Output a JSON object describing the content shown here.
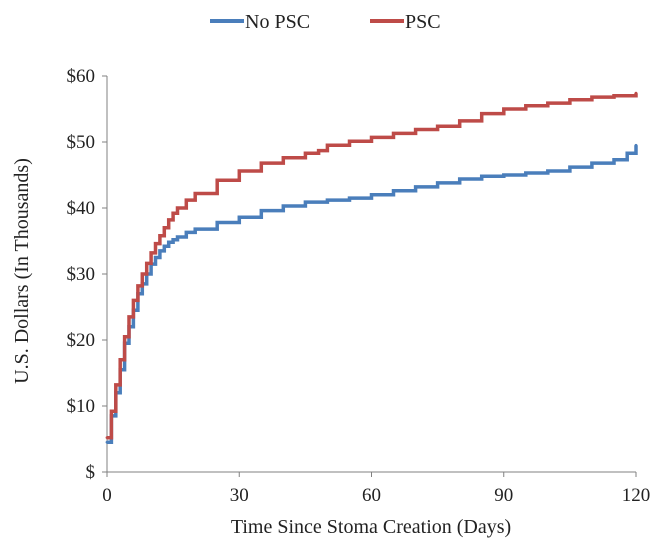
{
  "chart_data": {
    "type": "line",
    "step": true,
    "xlabel": "Time Since Stoma Creation (Days)",
    "ylabel": "U.S. Dollars (In Thousands)",
    "xlim": [
      0,
      120
    ],
    "ylim": [
      0,
      60
    ],
    "xticks": [
      0,
      30,
      60,
      90,
      120
    ],
    "xtick_labels": [
      "0",
      "30",
      "60",
      "90",
      "120"
    ],
    "yticks": [
      0,
      10,
      20,
      30,
      40,
      50,
      60
    ],
    "ytick_labels": [
      "$",
      "$10",
      "$20",
      "$30",
      "$40",
      "$50",
      "$60"
    ],
    "grid": false,
    "legend_position": "top-center",
    "series": [
      {
        "name": "No PSC",
        "color": "#4a7ebb",
        "x": [
          0,
          1,
          2,
          3,
          4,
          5,
          6,
          7,
          8,
          9,
          10,
          11,
          12,
          13,
          14,
          15,
          16,
          18,
          20,
          25,
          30,
          35,
          40,
          45,
          50,
          55,
          60,
          65,
          70,
          75,
          80,
          85,
          90,
          95,
          100,
          105,
          110,
          115,
          118,
          120
        ],
        "values": [
          4.5,
          8.5,
          12,
          15.5,
          19.5,
          22,
          24.5,
          27,
          28.5,
          30,
          31.5,
          32.5,
          33.5,
          34.2,
          34.8,
          35.2,
          35.6,
          36.3,
          36.8,
          37.8,
          38.6,
          39.6,
          40.3,
          40.9,
          41.2,
          41.5,
          42,
          42.6,
          43.2,
          43.8,
          44.4,
          44.8,
          45,
          45.3,
          45.6,
          46.2,
          46.8,
          47.3,
          48.3,
          49.5
        ]
      },
      {
        "name": "PSC",
        "color": "#be4b48",
        "x": [
          0,
          1,
          2,
          3,
          4,
          5,
          6,
          7,
          8,
          9,
          10,
          11,
          12,
          13,
          14,
          15,
          16,
          18,
          20,
          25,
          30,
          35,
          40,
          45,
          48,
          50,
          55,
          60,
          65,
          70,
          75,
          80,
          85,
          90,
          95,
          100,
          105,
          110,
          115,
          120
        ],
        "values": [
          5.2,
          9.2,
          13.2,
          17,
          20.5,
          23.5,
          26,
          28.2,
          30,
          31.6,
          33.2,
          34.6,
          35.8,
          37,
          38.2,
          39.2,
          40,
          41.2,
          42.2,
          44.2,
          45.6,
          46.8,
          47.6,
          48.3,
          48.7,
          49.5,
          50.1,
          50.7,
          51.3,
          51.9,
          52.4,
          53.2,
          54.3,
          55,
          55.5,
          55.9,
          56.4,
          56.8,
          57,
          57.4
        ]
      }
    ]
  }
}
